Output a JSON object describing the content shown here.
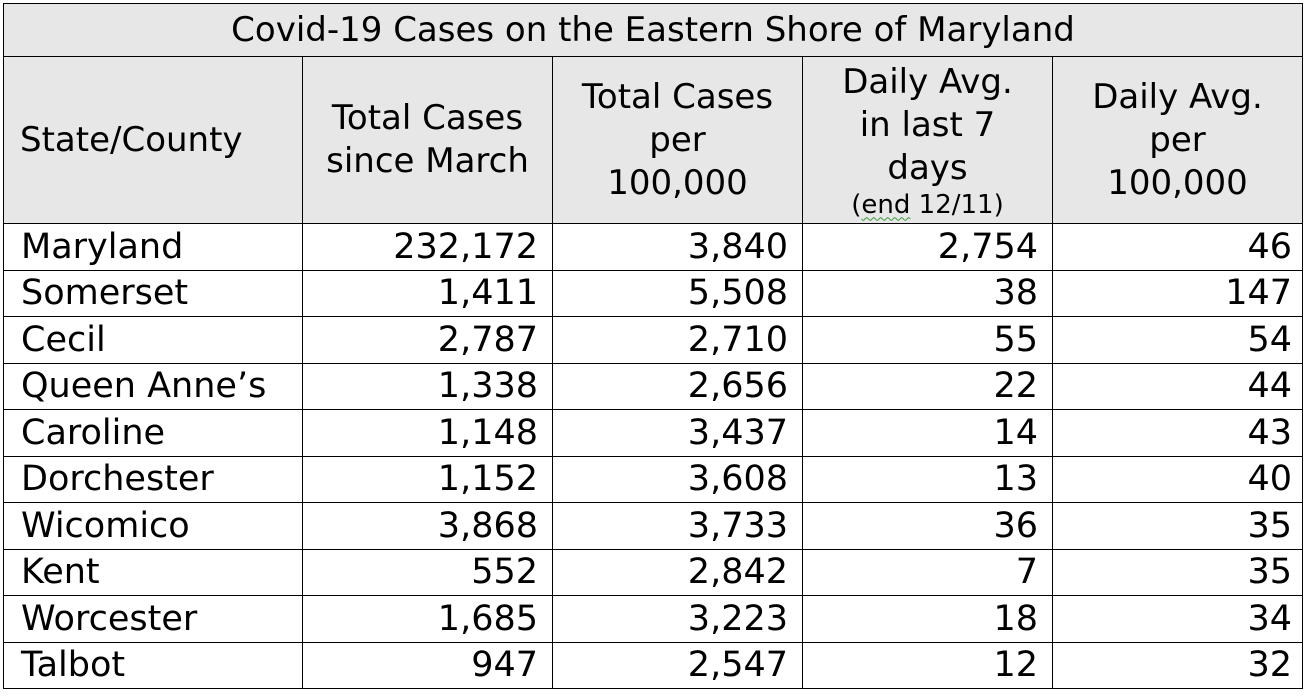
{
  "table": {
    "title": "Covid-19 Cases on the Eastern Shore of Maryland",
    "headers": {
      "col1": "State/County",
      "col2_line1": "Total Cases",
      "col2_line2": "since March",
      "col3_line1": "Total Cases",
      "col3_line2": "per",
      "col3_line3": "100,000",
      "col4_line1": "Daily Avg.",
      "col4_line2": "in last 7",
      "col4_line3": "days",
      "col4_note_open": "(",
      "col4_note_word": "end",
      "col4_note_rest": " 12/11)",
      "col5_line1": "Daily Avg.",
      "col5_line2": "per",
      "col5_line3": "100,000"
    },
    "rows": [
      {
        "name": "Maryland",
        "total": "232,172",
        "per100k": "3,840",
        "avg7": "2,754",
        "avgper100k": "46"
      },
      {
        "name": "Somerset",
        "total": "1,411",
        "per100k": "5,508",
        "avg7": "38",
        "avgper100k": "147"
      },
      {
        "name": "Cecil",
        "total": "2,787",
        "per100k": "2,710",
        "avg7": "55",
        "avgper100k": "54"
      },
      {
        "name": "Queen Anne’s",
        "total": "1,338",
        "per100k": "2,656",
        "avg7": "22",
        "avgper100k": "44"
      },
      {
        "name": "Caroline",
        "total": "1,148",
        "per100k": "3,437",
        "avg7": "14",
        "avgper100k": "43"
      },
      {
        "name": "Dorchester",
        "total": "1,152",
        "per100k": "3,608",
        "avg7": "13",
        "avgper100k": "40"
      },
      {
        "name": "Wicomico",
        "total": "3,868",
        "per100k": "3,733",
        "avg7": "36",
        "avgper100k": "35"
      },
      {
        "name": "Kent",
        "total": "552",
        "per100k": "2,842",
        "avg7": "7",
        "avgper100k": "35"
      },
      {
        "name": "Worcester",
        "total": "1,685",
        "per100k": "3,223",
        "avg7": "18",
        "avgper100k": "34"
      },
      {
        "name": "Talbot",
        "total": "947",
        "per100k": "2,547",
        "avg7": "12",
        "avgper100k": "32"
      }
    ]
  }
}
